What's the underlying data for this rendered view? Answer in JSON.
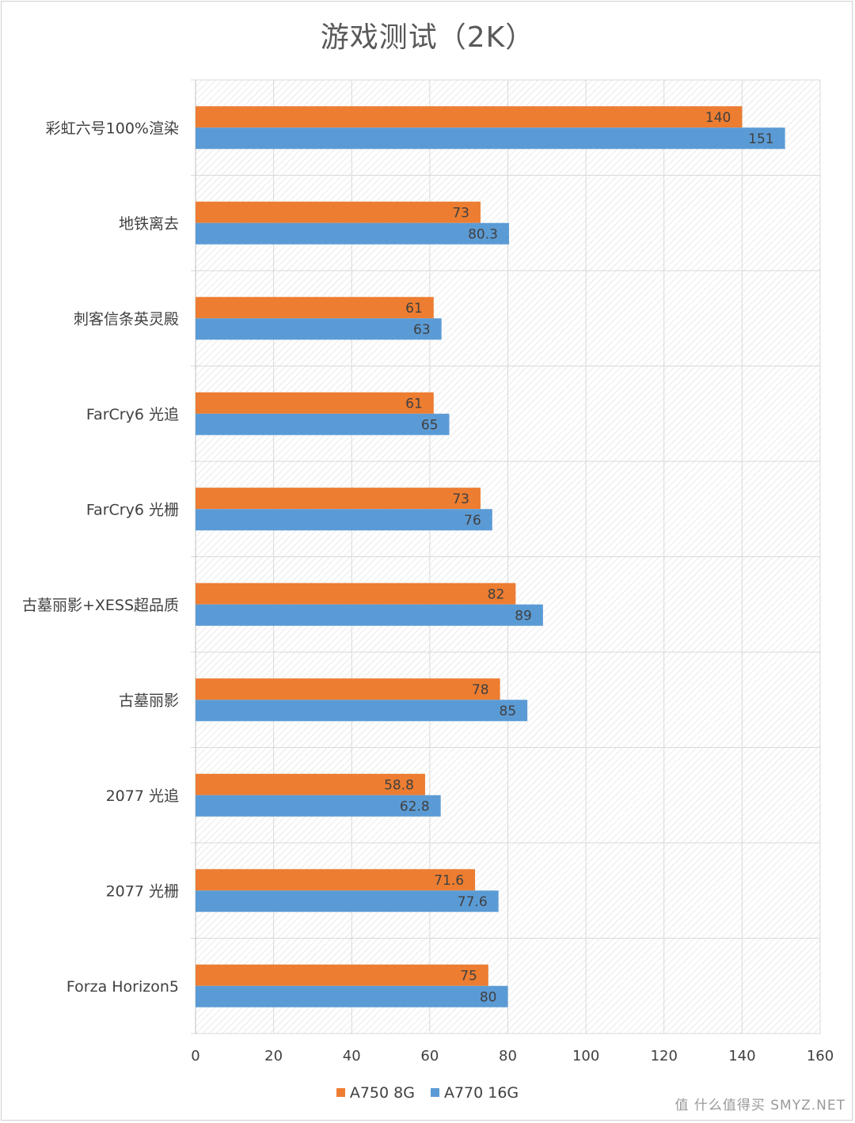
{
  "chart_data": {
    "type": "bar",
    "orientation": "horizontal",
    "title": "游戏测试（2K）",
    "categories": [
      "彩虹六号100%渲染",
      "地铁离去",
      "刺客信条英灵殿",
      "FarCry6 光追",
      "FarCry6 光栅",
      "古墓丽影+XESS超品质",
      "古墓丽影",
      "2077 光追",
      "2077 光栅",
      "Forza Horizon5"
    ],
    "series": [
      {
        "name": "A750 8G",
        "color": "#ED7D31",
        "values": [
          140,
          73,
          61,
          61,
          73,
          82,
          78,
          58.8,
          71.6,
          75
        ]
      },
      {
        "name": "A770 16G",
        "color": "#5B9BD5",
        "values": [
          151,
          80.3,
          63,
          65,
          76,
          89,
          85,
          62.8,
          77.6,
          80
        ]
      }
    ],
    "xlim": [
      0,
      160
    ],
    "x_ticks": [
      0,
      20,
      40,
      60,
      80,
      100,
      120,
      140,
      160
    ],
    "grid": true,
    "legend_position": "bottom"
  },
  "watermark": "值 什么值得买 SMYZ.NET"
}
